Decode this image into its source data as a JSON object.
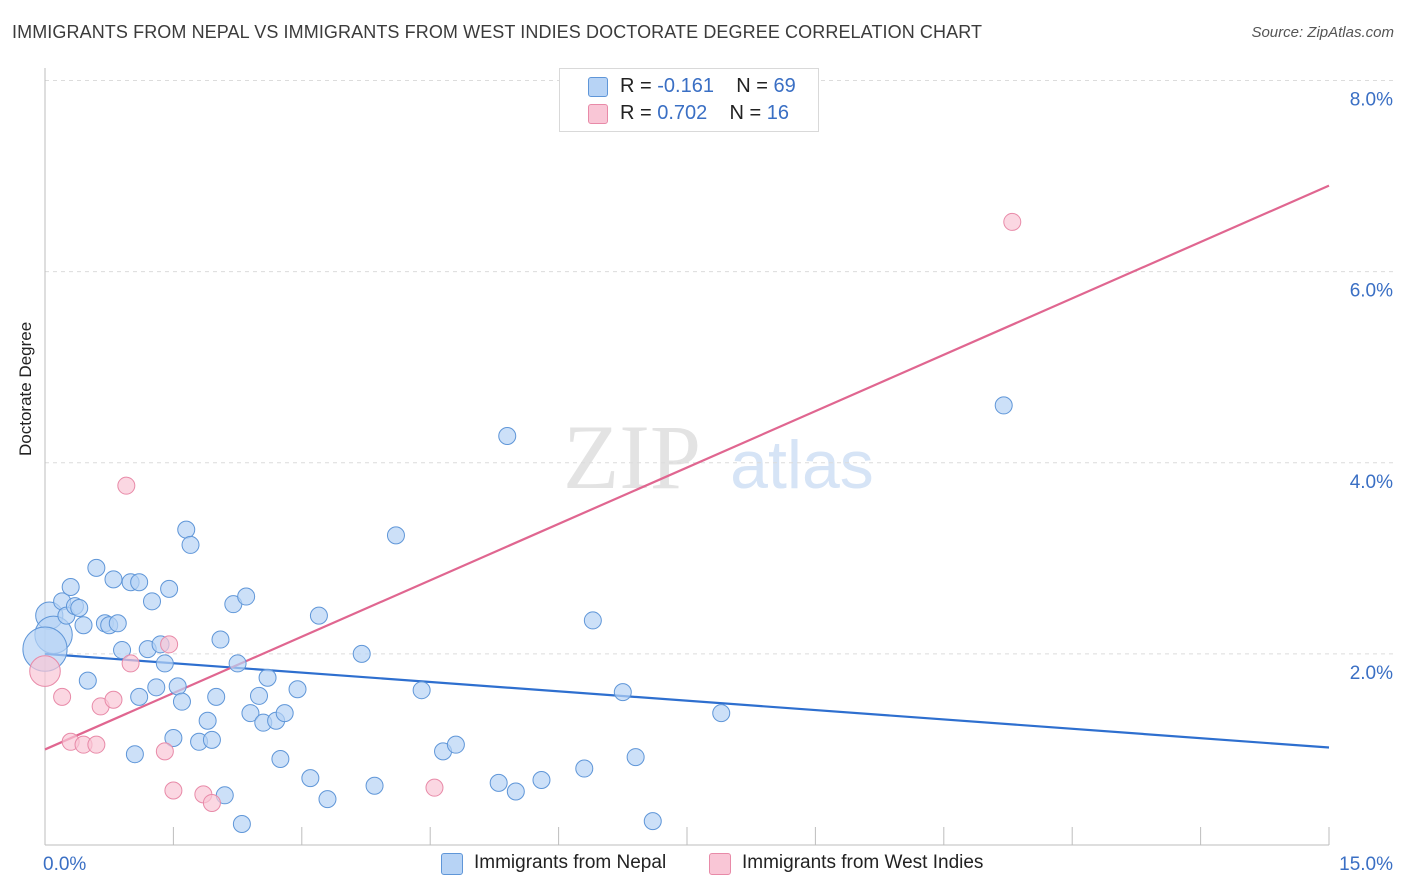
{
  "header": {
    "title": "IMMIGRANTS FROM NEPAL VS IMMIGRANTS FROM WEST INDIES DOCTORATE DEGREE CORRELATION CHART",
    "source": "Source: ZipAtlas.com"
  },
  "watermark": {
    "zip": "ZIP",
    "atlas": "atlas"
  },
  "legend": {
    "r_label": "R =",
    "n_label": "N =",
    "nepal": {
      "r": "-0.161",
      "n": "69"
    },
    "west_indies": {
      "r": "0.702",
      "n": "16"
    }
  },
  "colors": {
    "nepal_fill": "#b7d3f5",
    "nepal_stroke": "#5f96d8",
    "nepal_line": "#2e6fcf",
    "west_indies_fill": "#f9c6d6",
    "west_indies_stroke": "#e88aa8",
    "west_indies_line": "#e06690",
    "tick_label": "#3a6fc4",
    "grid": "#dcdcdc"
  },
  "chart_data": {
    "type": "scatter",
    "title": "IMMIGRANTS FROM NEPAL VS IMMIGRANTS FROM WEST INDIES DOCTORATE DEGREE CORRELATION CHART",
    "xlabel": "",
    "ylabel": "Doctorate Degree",
    "xlim": [
      0,
      15
    ],
    "ylim": [
      0,
      8
    ],
    "x_tick_labels": [
      "0.0%",
      "15.0%"
    ],
    "y_ticks": [
      2,
      4,
      6,
      8
    ],
    "y_tick_labels": [
      "2.0%",
      "4.0%",
      "6.0%",
      "8.0%"
    ],
    "grid": true,
    "legend_position": "top-center",
    "series": [
      {
        "name": "Immigrants from Nepal",
        "r": -0.161,
        "n": 69,
        "points": [
          [
            0.05,
            2.4,
            1.6
          ],
          [
            0.1,
            2.2,
            2.2
          ],
          [
            0.0,
            2.05,
            2.6
          ],
          [
            0.2,
            2.55,
            1
          ],
          [
            0.25,
            2.4,
            1
          ],
          [
            0.3,
            2.7,
            1
          ],
          [
            0.35,
            2.5,
            1
          ],
          [
            0.4,
            2.48,
            1
          ],
          [
            0.45,
            2.3,
            1
          ],
          [
            0.5,
            1.72,
            1
          ],
          [
            0.6,
            2.9,
            1
          ],
          [
            0.7,
            2.32,
            1
          ],
          [
            0.75,
            2.3,
            1
          ],
          [
            0.8,
            2.78,
            1
          ],
          [
            0.85,
            2.32,
            1
          ],
          [
            0.9,
            2.04,
            1
          ],
          [
            1.0,
            2.75,
            1
          ],
          [
            1.05,
            0.95,
            1
          ],
          [
            1.1,
            2.75,
            1
          ],
          [
            1.1,
            1.55,
            1
          ],
          [
            1.2,
            2.05,
            1
          ],
          [
            1.25,
            2.55,
            1
          ],
          [
            1.3,
            1.65,
            1
          ],
          [
            1.35,
            2.1,
            1
          ],
          [
            1.4,
            1.9,
            1
          ],
          [
            1.45,
            2.68,
            1
          ],
          [
            1.5,
            1.12,
            1
          ],
          [
            1.55,
            1.66,
            1
          ],
          [
            1.6,
            1.5,
            1
          ],
          [
            1.65,
            3.3,
            1
          ],
          [
            1.7,
            3.14,
            1
          ],
          [
            1.8,
            1.08,
            1
          ],
          [
            1.9,
            1.3,
            1
          ],
          [
            1.95,
            1.1,
            1
          ],
          [
            2.0,
            1.55,
            1
          ],
          [
            2.05,
            2.15,
            1
          ],
          [
            2.1,
            0.52,
            1
          ],
          [
            2.2,
            2.52,
            1
          ],
          [
            2.25,
            1.9,
            1
          ],
          [
            2.3,
            0.22,
            1
          ],
          [
            2.35,
            2.6,
            1
          ],
          [
            2.4,
            1.38,
            1
          ],
          [
            2.5,
            1.56,
            1
          ],
          [
            2.55,
            1.28,
            1
          ],
          [
            2.6,
            1.75,
            1
          ],
          [
            2.7,
            1.3,
            1
          ],
          [
            2.75,
            0.9,
            1
          ],
          [
            2.8,
            1.38,
            1
          ],
          [
            2.95,
            1.63,
            1
          ],
          [
            3.1,
            0.7,
            1
          ],
          [
            3.2,
            2.4,
            1
          ],
          [
            3.3,
            0.48,
            1
          ],
          [
            3.7,
            2.0,
            1
          ],
          [
            3.85,
            0.62,
            1
          ],
          [
            4.1,
            3.24,
            1
          ],
          [
            4.4,
            1.62,
            1
          ],
          [
            4.65,
            0.98,
            1
          ],
          [
            4.8,
            1.05,
            1
          ],
          [
            5.3,
            0.65,
            1
          ],
          [
            5.4,
            4.28,
            1
          ],
          [
            5.5,
            0.56,
            1
          ],
          [
            5.8,
            0.68,
            1
          ],
          [
            6.3,
            0.8,
            1
          ],
          [
            6.4,
            2.35,
            1
          ],
          [
            6.75,
            1.6,
            1
          ],
          [
            6.9,
            0.92,
            1
          ],
          [
            7.1,
            0.25,
            1
          ],
          [
            7.9,
            1.38,
            1
          ],
          [
            11.2,
            4.6,
            1
          ]
        ],
        "trendline": {
          "x": [
            0,
            15
          ],
          "y": [
            2.0,
            1.02
          ]
        }
      },
      {
        "name": "Immigrants from West Indies",
        "r": 0.702,
        "n": 16,
        "points": [
          [
            0.0,
            1.82,
            1.8
          ],
          [
            0.2,
            1.55,
            1
          ],
          [
            0.3,
            1.08,
            1
          ],
          [
            0.45,
            1.05,
            1
          ],
          [
            0.6,
            1.05,
            1
          ],
          [
            0.65,
            1.45,
            1
          ],
          [
            0.8,
            1.52,
            1
          ],
          [
            0.95,
            3.76,
            1
          ],
          [
            1.0,
            1.9,
            1
          ],
          [
            1.4,
            0.98,
            1
          ],
          [
            1.45,
            2.1,
            1
          ],
          [
            1.5,
            0.57,
            1
          ],
          [
            1.85,
            0.53,
            1
          ],
          [
            1.95,
            0.44,
            1
          ],
          [
            4.55,
            0.6,
            1
          ],
          [
            11.3,
            6.52,
            1
          ]
        ],
        "trendline": {
          "x": [
            0,
            15
          ],
          "y": [
            1.0,
            6.9
          ]
        }
      }
    ]
  }
}
